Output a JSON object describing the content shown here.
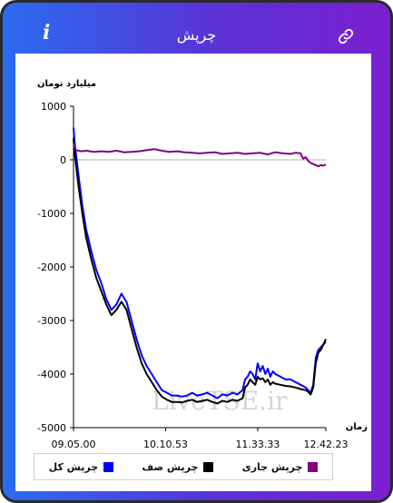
{
  "header": {
    "title": "چرپش",
    "info_glyph": "i",
    "info_icon": "info-icon",
    "link_icon": "link-icon"
  },
  "watermark": "LiveTSE.ir",
  "chart_data": {
    "type": "line",
    "ylabel": "میلیارد تومان",
    "xlabel": "زمان",
    "ylim": [
      -5000,
      1000
    ],
    "yticks": [
      1000,
      0,
      -1000,
      -2000,
      -3000,
      -4000,
      -5000
    ],
    "xlim": [
      0,
      100
    ],
    "xtick_positions": [
      0,
      36.5,
      73,
      100
    ],
    "xticks": [
      "09.05.00",
      "10.10.53",
      "11.33.33",
      "12.42.23"
    ],
    "legend_position": "bottom",
    "series": [
      {
        "name": "چرپش کل",
        "color": "#0000ff",
        "x": [
          0,
          0.5,
          1,
          2,
          3.5,
          5,
          7,
          9,
          11,
          13,
          15,
          17,
          19,
          21,
          23,
          25,
          27,
          29,
          31,
          33,
          35,
          37,
          39,
          41,
          43,
          45,
          47,
          49,
          51,
          53,
          55,
          57,
          59,
          61,
          63,
          65,
          67,
          68,
          69,
          70,
          71,
          72,
          73,
          74,
          75,
          76,
          77,
          78,
          79,
          80,
          82,
          84,
          86,
          88,
          90,
          92,
          93,
          94,
          95,
          96,
          97,
          98,
          99,
          100
        ],
        "y": [
          600,
          300,
          100,
          -300,
          -850,
          -1300,
          -1700,
          -2050,
          -2300,
          -2600,
          -2800,
          -2700,
          -2500,
          -2650,
          -3000,
          -3350,
          -3650,
          -3850,
          -4000,
          -4150,
          -4300,
          -4350,
          -4400,
          -4400,
          -4420,
          -4400,
          -4350,
          -4400,
          -4380,
          -4350,
          -4400,
          -4450,
          -4380,
          -4400,
          -4350,
          -4380,
          -4300,
          -4100,
          -4050,
          -3950,
          -4000,
          -4100,
          -3800,
          -3950,
          -3850,
          -4000,
          -3900,
          -4050,
          -3950,
          -4000,
          -4050,
          -4100,
          -4100,
          -4150,
          -4200,
          -4250,
          -4300,
          -4350,
          -4200,
          -3700,
          -3550,
          -3500,
          -3450,
          -3400
        ]
      },
      {
        "name": "چرپش صف",
        "color": "#000000",
        "x": [
          0,
          0.5,
          1,
          2,
          3.5,
          5,
          7,
          9,
          11,
          13,
          15,
          17,
          19,
          21,
          23,
          25,
          27,
          29,
          31,
          33,
          35,
          37,
          39,
          41,
          43,
          45,
          47,
          49,
          51,
          53,
          55,
          57,
          59,
          61,
          63,
          65,
          67,
          68,
          69,
          70,
          71,
          72,
          73,
          74,
          75,
          76,
          77,
          78,
          79,
          80,
          82,
          84,
          86,
          88,
          90,
          92,
          93,
          94,
          95,
          96,
          97,
          98,
          99,
          100
        ],
        "y": [
          400,
          100,
          -100,
          -500,
          -1000,
          -1450,
          -1850,
          -2200,
          -2450,
          -2700,
          -2900,
          -2800,
          -2650,
          -2800,
          -3150,
          -3500,
          -3800,
          -4000,
          -4150,
          -4300,
          -4420,
          -4480,
          -4520,
          -4520,
          -4530,
          -4500,
          -4480,
          -4520,
          -4500,
          -4480,
          -4520,
          -4550,
          -4500,
          -4520,
          -4480,
          -4500,
          -4450,
          -4250,
          -4200,
          -4100,
          -4150,
          -4200,
          -4050,
          -4100,
          -4080,
          -4150,
          -4100,
          -4200,
          -4150,
          -4180,
          -4200,
          -4220,
          -4230,
          -4250,
          -4280,
          -4300,
          -4330,
          -4380,
          -4250,
          -3800,
          -3600,
          -3550,
          -3450,
          -3350
        ]
      },
      {
        "name": "چرپش جاری",
        "color": "#800080",
        "x": [
          0,
          1,
          3,
          5,
          8,
          11,
          14,
          17,
          20,
          23,
          26,
          29,
          32,
          35,
          38,
          41,
          44,
          47,
          50,
          53,
          56,
          59,
          62,
          65,
          68,
          71,
          74,
          77,
          80,
          83,
          86,
          88,
          90,
          91,
          92,
          93,
          94,
          95,
          96,
          97,
          98,
          99,
          100
        ],
        "y": [
          300,
          180,
          160,
          170,
          150,
          160,
          150,
          170,
          140,
          150,
          160,
          180,
          200,
          170,
          150,
          160,
          140,
          130,
          120,
          130,
          140,
          110,
          120,
          130,
          110,
          120,
          130,
          100,
          140,
          120,
          110,
          130,
          120,
          20,
          50,
          -20,
          -60,
          -80,
          -100,
          -120,
          -100,
          -110,
          -90
        ]
      }
    ]
  }
}
